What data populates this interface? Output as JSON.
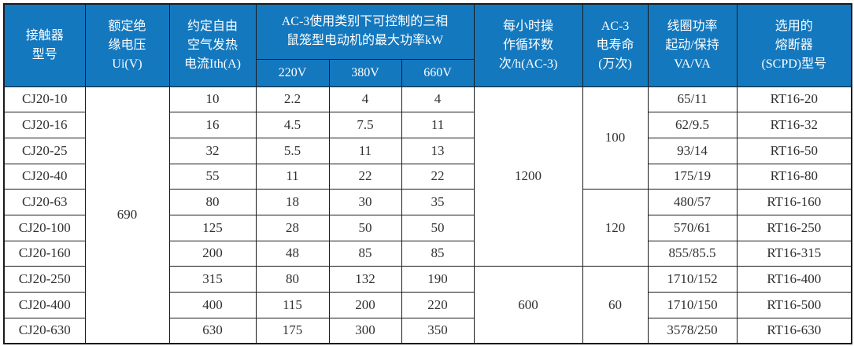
{
  "table": {
    "header": {
      "model": "接触器\n型号",
      "insulation_voltage": "额定绝\n缘电压\nUi(V)",
      "thermal_current": "约定自由\n空气发热\n电流Ith(A)",
      "ac3_power_group": "AC-3使用类别下可控制的三相\n鼠笼型电动机的最大功率kW",
      "ac3_sub": [
        "220V",
        "380V",
        "660V"
      ],
      "cycles": "每小时操\n作循环数\n次/h(AC-3)",
      "electrical_life": "AC-3\n电寿命\n(万次)",
      "coil_power": "线圈功率\n起动/保持\nVA/VA",
      "fuse": "选用的\n熔断器\n(SCPD)型号"
    },
    "rows": [
      {
        "model": "CJ20-10",
        "ith": "10",
        "p220": "2.2",
        "p380": "4",
        "p660": "4",
        "coil": "65/11",
        "fuse": "RT16-20"
      },
      {
        "model": "CJ20-16",
        "ith": "16",
        "p220": "4.5",
        "p380": "7.5",
        "p660": "11",
        "coil": "62/9.5",
        "fuse": "RT16-32"
      },
      {
        "model": "CJ20-25",
        "ith": "32",
        "p220": "5.5",
        "p380": "11",
        "p660": "13",
        "coil": "93/14",
        "fuse": "RT16-50"
      },
      {
        "model": "CJ20-40",
        "ith": "55",
        "p220": "11",
        "p380": "22",
        "p660": "22",
        "coil": "175/19",
        "fuse": "RT16-80"
      },
      {
        "model": "CJ20-63",
        "ith": "80",
        "p220": "18",
        "p380": "30",
        "p660": "35",
        "coil": "480/57",
        "fuse": "RT16-160"
      },
      {
        "model": "CJ20-100",
        "ith": "125",
        "p220": "28",
        "p380": "50",
        "p660": "50",
        "coil": "570/61",
        "fuse": "RT16-250"
      },
      {
        "model": "CJ20-160",
        "ith": "200",
        "p220": "48",
        "p380": "85",
        "p660": "85",
        "coil": "855/85.5",
        "fuse": "RT16-315"
      },
      {
        "model": "CJ20-250",
        "ith": "315",
        "p220": "80",
        "p380": "132",
        "p660": "190",
        "coil": "1710/152",
        "fuse": "RT16-400"
      },
      {
        "model": "CJ20-400",
        "ith": "400",
        "p220": "115",
        "p380": "200",
        "p660": "220",
        "coil": "1710/150",
        "fuse": "RT16-500"
      },
      {
        "model": "CJ20-630",
        "ith": "630",
        "p220": "175",
        "p380": "300",
        "p660": "350",
        "coil": "3578/250",
        "fuse": "RT16-630"
      }
    ],
    "merged_cells": {
      "insulation_voltage": [
        {
          "start": 0,
          "span": 10,
          "value": "690"
        }
      ],
      "cycles": [
        {
          "start": 0,
          "span": 7,
          "value": "1200"
        },
        {
          "start": 7,
          "span": 3,
          "value": "600"
        }
      ],
      "electrical_life": [
        {
          "start": 0,
          "span": 4,
          "value": "100"
        },
        {
          "start": 4,
          "span": 3,
          "value": "120"
        },
        {
          "start": 7,
          "span": 3,
          "value": "60"
        }
      ]
    },
    "colors": {
      "header_bg": "#1478be",
      "header_text": "#ffffff",
      "border": "#1b1b1b",
      "body_text": "#303030"
    }
  }
}
